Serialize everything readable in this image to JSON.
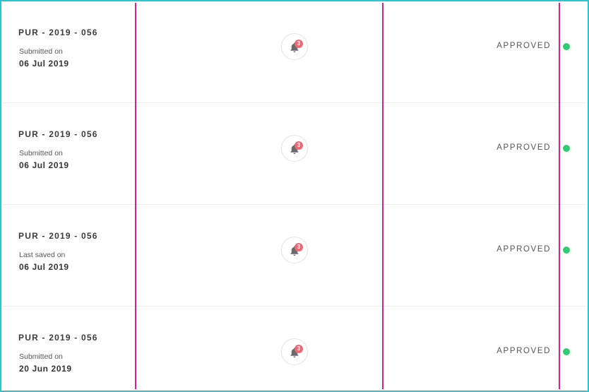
{
  "colors": {
    "frame": "#2cc5c9",
    "guide": "#d6238a",
    "badge": "#f06773",
    "status_dot": "#2ecc71"
  },
  "rows": [
    {
      "reference": "PUR - 2019 - 056",
      "meta_label": "Submitted on",
      "meta_date": "06 Jul 2019",
      "notification_count": "3",
      "status": "APPROVED",
      "status_icon": "green-dot-icon"
    },
    {
      "reference": "PUR - 2019 - 056",
      "meta_label": "Submitted on",
      "meta_date": "06 Jul 2019",
      "notification_count": "3",
      "status": "APPROVED",
      "status_icon": "green-dot-icon"
    },
    {
      "reference": "PUR - 2019 - 056",
      "meta_label": "Last saved on",
      "meta_date": "06 Jul 2019",
      "notification_count": "3",
      "status": "APPROVED",
      "status_icon": "green-dot-icon"
    },
    {
      "reference": "PUR - 2019 - 056",
      "meta_label": "Submitted on",
      "meta_date": "20 Jun 2019",
      "notification_count": "3",
      "status": "APPROVED",
      "status_icon": "green-dot-icon"
    }
  ]
}
